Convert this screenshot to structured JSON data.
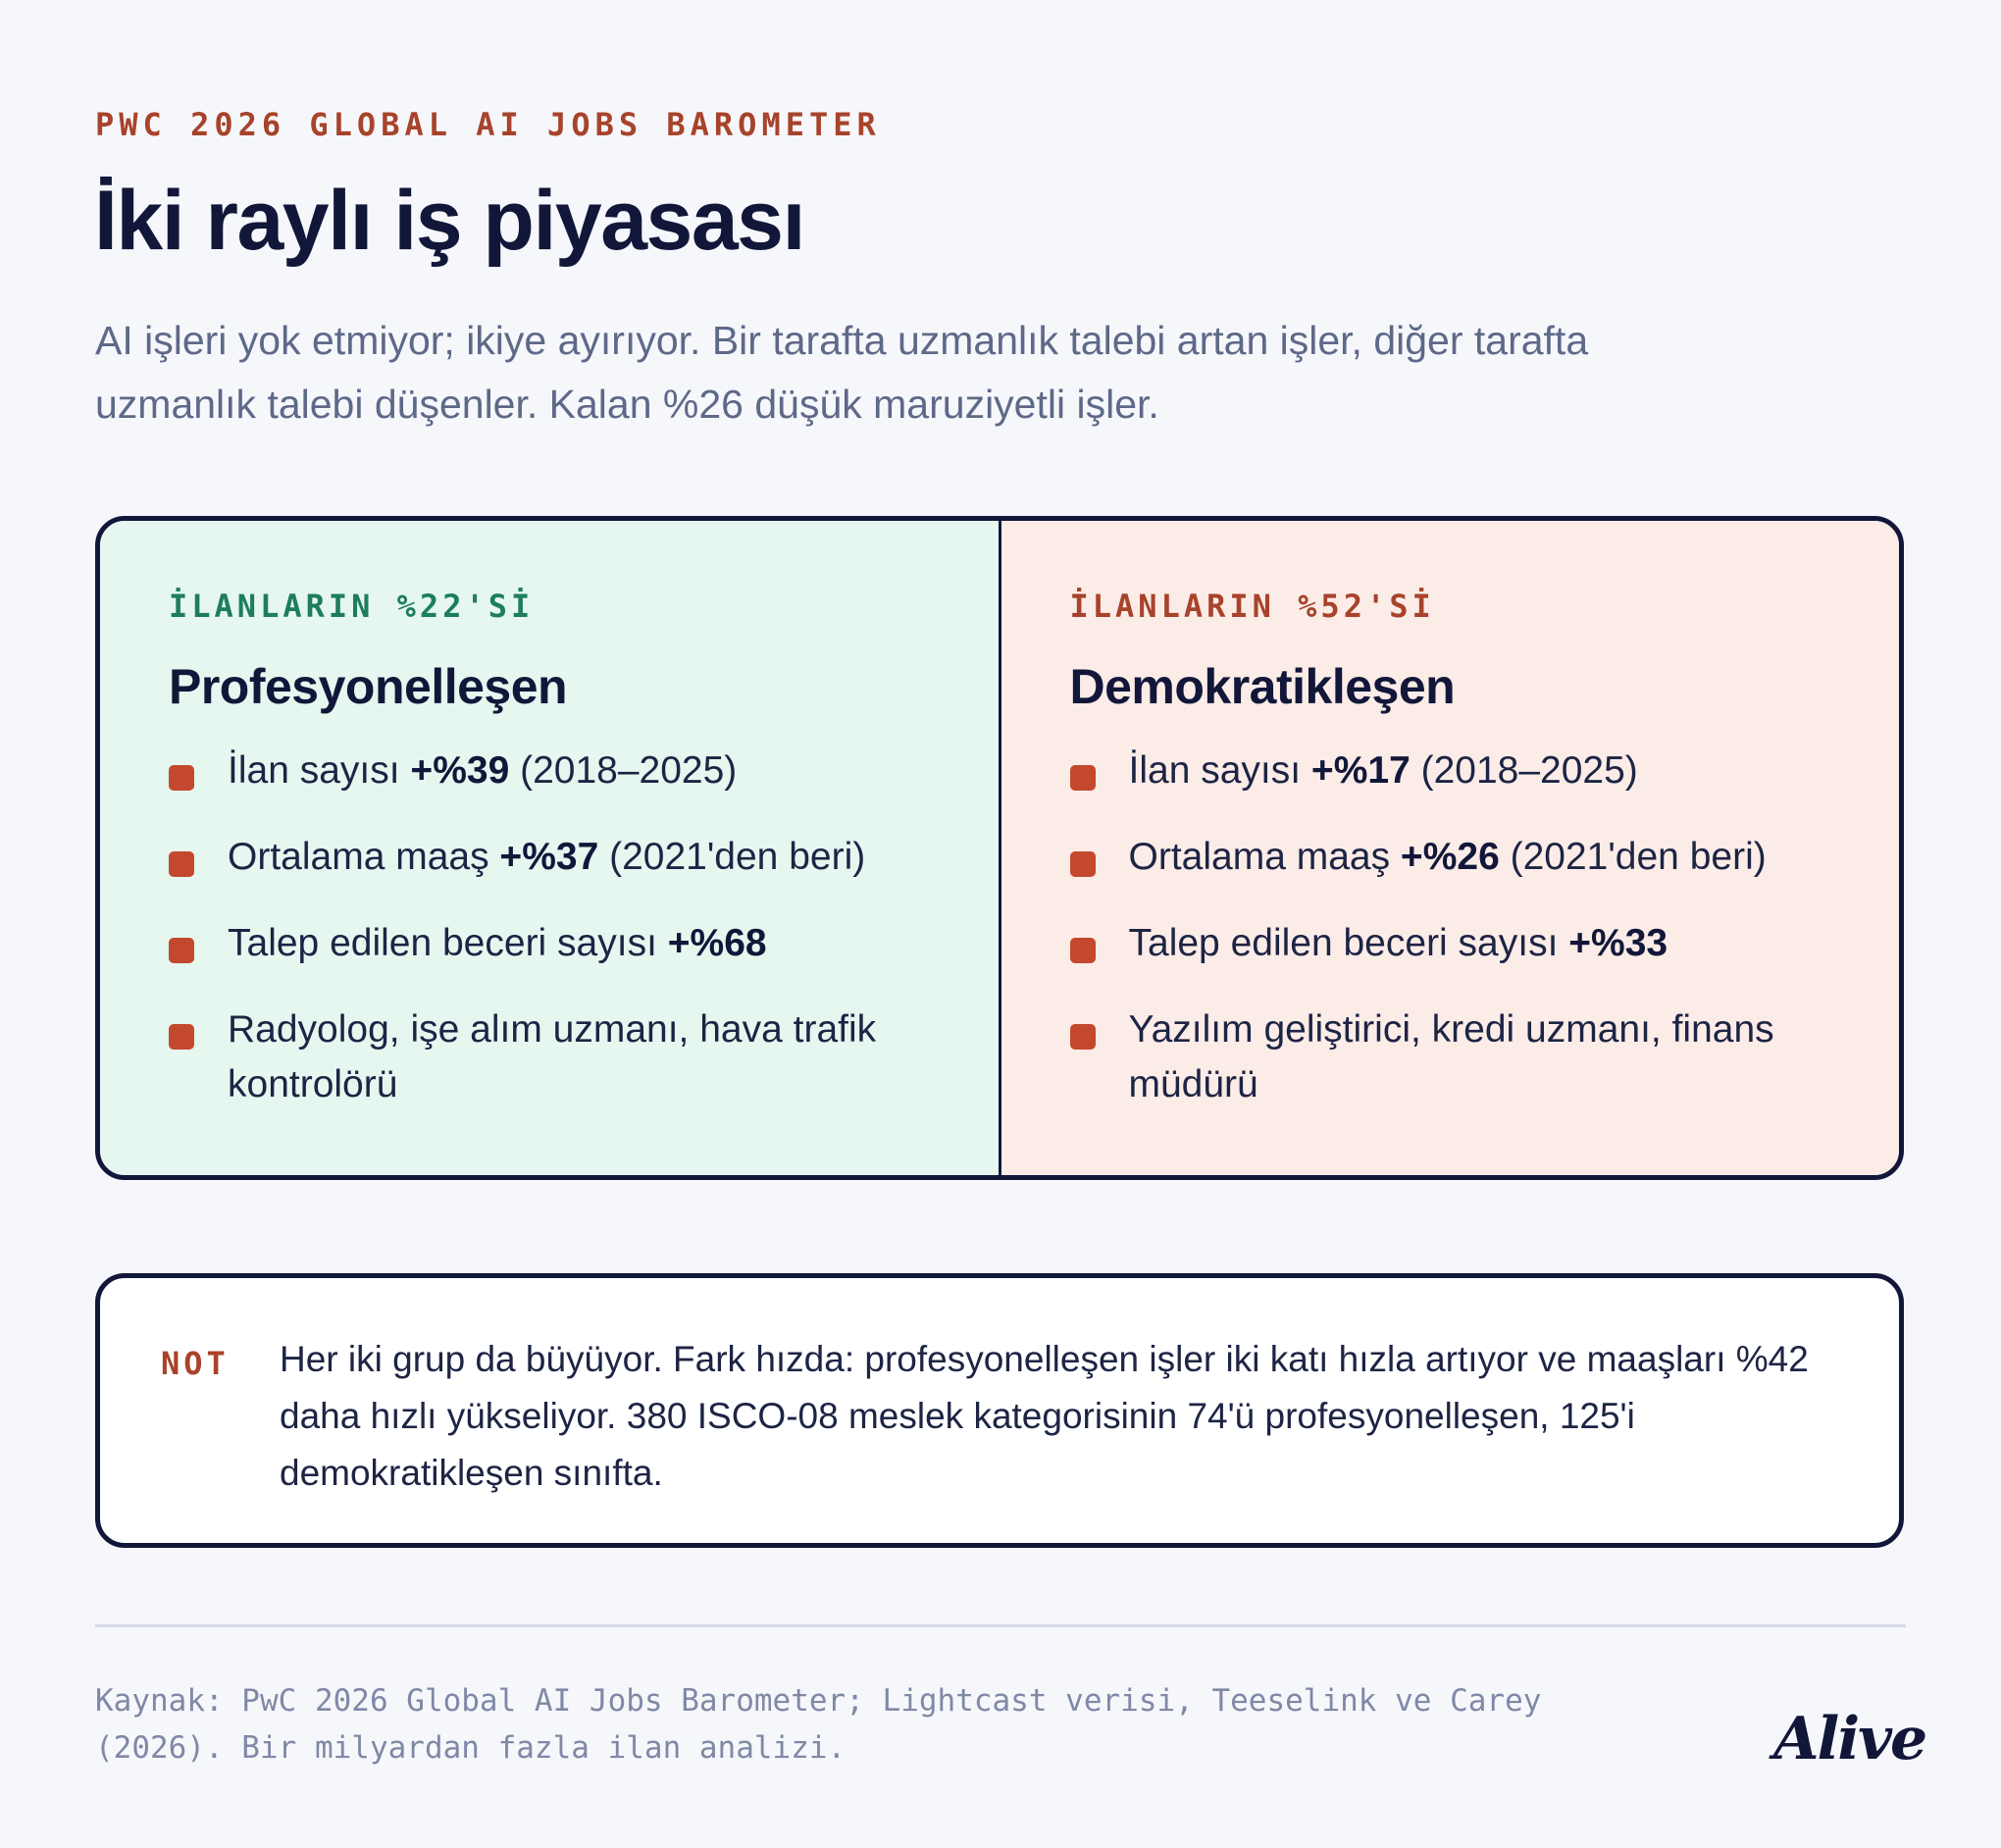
{
  "header": {
    "eyebrow": "PWC 2026 GLOBAL AI JOBS BAROMETER",
    "title": "İki raylı iş piyasası",
    "subtitle": "AI işleri yok etmiyor; ikiye ayırıyor. Bir tarafta uzmanlık talebi artan işler, diğer tarafta uzmanlık talebi düşenler. Kalan %26 düşük maruziyetli işler."
  },
  "columns": [
    {
      "eyebrow": "İLANLARIN %22'Sİ",
      "heading": "Profesyonelleşen",
      "accent": "#1e7e5c",
      "background": "#e6f7f0",
      "bullets": [
        {
          "pre": "İlan sayısı ",
          "bold": "+%39",
          "post": " (2018–2025)"
        },
        {
          "pre": "Ortalama maaş ",
          "bold": "+%37",
          "post": " (2021'den beri)"
        },
        {
          "pre": "Talep edilen beceri sayısı ",
          "bold": "+%68",
          "post": ""
        },
        {
          "pre": "Radyolog, işe alım uzmanı, hava trafik kontrolörü",
          "bold": "",
          "post": ""
        }
      ]
    },
    {
      "eyebrow": "İLANLARIN %52'Sİ",
      "heading": "Demokratikleşen",
      "accent": "#a8432b",
      "background": "#fbece7",
      "bullets": [
        {
          "pre": "İlan sayısı ",
          "bold": "+%17",
          "post": " (2018–2025)"
        },
        {
          "pre": "Ortalama maaş ",
          "bold": "+%26",
          "post": " (2021'den beri)"
        },
        {
          "pre": "Talep edilen beceri sayısı ",
          "bold": "+%33",
          "post": ""
        },
        {
          "pre": "Yazılım geliştirici, kredi uzmanı, finans müdürü",
          "bold": "",
          "post": ""
        }
      ]
    }
  ],
  "note": {
    "label": "NOT",
    "text": "Her iki grup da büyüyor. Fark hızda: profesyonelleşen işler iki katı hızla artıyor ve maaşları %42 daha hızlı yükseliyor. 380 ISCO-08 meslek kategorisinin 74'ü profesyonelleşen, 125'i demokratikleşen sınıfta."
  },
  "footer": {
    "source": "Kaynak: PwC 2026 Global AI Jobs Barometer; Lightcast verisi, Teeselink ve Carey (2026). Bir milyardan fazla ilan analizi.",
    "logo": "Alive"
  },
  "colors": {
    "bullet": "#c4482d",
    "border": "#12173a",
    "page": "#f6f7fb"
  }
}
